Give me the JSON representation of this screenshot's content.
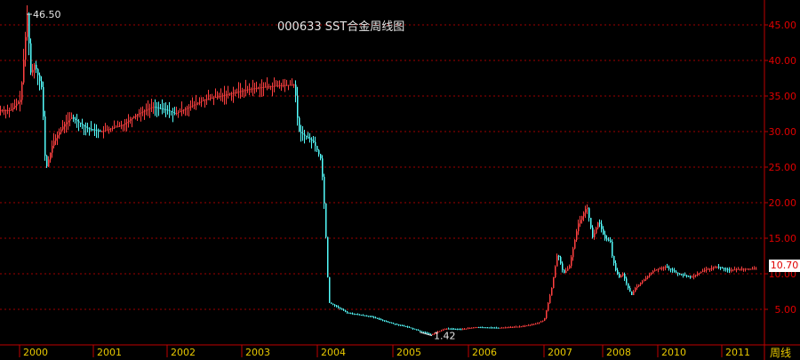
{
  "header": {
    "title": "000633 SST合金周线图"
  },
  "footer": {
    "period_label": "周线"
  },
  "last_price": {
    "label": "10.70"
  },
  "annotations": {
    "high_label": "46.50",
    "low_label": "1.42"
  },
  "colors": {
    "up": "#ff4040",
    "down": "#54fcfc",
    "grid": "#a00000",
    "axis": "#c00000",
    "axis_text": "#e00000",
    "year_text": "#e8c800"
  },
  "chart_data": {
    "type": "candlestick",
    "title": "000633 SST合金周线图",
    "xlabel": "",
    "ylabel": "",
    "ylim": [
      0,
      48
    ],
    "y_ticks": [
      "5.00",
      "10.00",
      "15.00",
      "20.00",
      "25.00",
      "30.00",
      "35.00",
      "40.00",
      "45.00"
    ],
    "x_ticks": [
      "2000",
      "2001",
      "2002",
      "2003",
      "2004",
      "2005",
      "2006",
      "2007",
      "2008",
      "2010",
      "2011"
    ],
    "series": [
      {
        "values": [
          [
            1999.75,
            33.0
          ],
          [
            1999.9,
            34.5
          ],
          [
            2000.0,
            46.5
          ],
          [
            2000.05,
            38.0
          ],
          [
            2000.1,
            39.5
          ],
          [
            2000.2,
            36.0
          ],
          [
            2000.25,
            24.5
          ],
          [
            2000.35,
            28.5
          ],
          [
            2000.5,
            31.0
          ],
          [
            2000.6,
            32.0
          ],
          [
            2000.8,
            30.5
          ],
          [
            2001.0,
            30.0
          ],
          [
            2001.3,
            31.0
          ],
          [
            2001.5,
            32.5
          ],
          [
            2001.7,
            33.5
          ],
          [
            2001.9,
            33.0
          ],
          [
            2002.0,
            32.5
          ],
          [
            2002.2,
            33.5
          ],
          [
            2002.4,
            34.5
          ],
          [
            2002.6,
            35.0
          ],
          [
            2002.8,
            35.5
          ],
          [
            2003.0,
            36.0
          ],
          [
            2003.2,
            36.3
          ],
          [
            2003.4,
            36.5
          ],
          [
            2003.6,
            36.6
          ],
          [
            2003.65,
            30.0
          ],
          [
            2003.85,
            28.5
          ],
          [
            2003.95,
            26.0
          ],
          [
            2004.0,
            18.0
          ],
          [
            2004.05,
            6.0
          ],
          [
            2004.3,
            4.5
          ],
          [
            2004.6,
            4.0
          ],
          [
            2004.9,
            3.0
          ],
          [
            2005.1,
            2.5
          ],
          [
            2005.3,
            1.8
          ],
          [
            2005.4,
            1.42
          ],
          [
            2005.6,
            2.3
          ],
          [
            2005.8,
            2.2
          ],
          [
            2006.0,
            2.5
          ],
          [
            2006.3,
            2.4
          ],
          [
            2006.6,
            2.6
          ],
          [
            2006.8,
            3.0
          ],
          [
            2006.9,
            3.5
          ],
          [
            2007.0,
            8.0
          ],
          [
            2007.1,
            13.0
          ],
          [
            2007.2,
            10.0
          ],
          [
            2007.3,
            11.0
          ],
          [
            2007.45,
            17.0
          ],
          [
            2007.6,
            19.5
          ],
          [
            2007.7,
            15.0
          ],
          [
            2007.8,
            17.5
          ],
          [
            2007.9,
            15.0
          ],
          [
            2008.0,
            14.5
          ],
          [
            2008.1,
            12.5
          ],
          [
            2008.3,
            10.5
          ],
          [
            2008.5,
            9.5
          ],
          [
            2008.7,
            10.0
          ],
          [
            2009.0,
            8.0
          ],
          [
            2009.2,
            7.0
          ],
          [
            2009.4,
            8.0
          ],
          [
            2009.6,
            9.0
          ],
          [
            2009.8,
            10.5
          ],
          [
            2010.0,
            11.0
          ],
          [
            2010.2,
            10.0
          ],
          [
            2010.4,
            9.5
          ],
          [
            2010.6,
            10.5
          ],
          [
            2010.8,
            11.0
          ],
          [
            2011.0,
            10.5
          ],
          [
            2011.2,
            10.7
          ]
        ]
      }
    ]
  }
}
